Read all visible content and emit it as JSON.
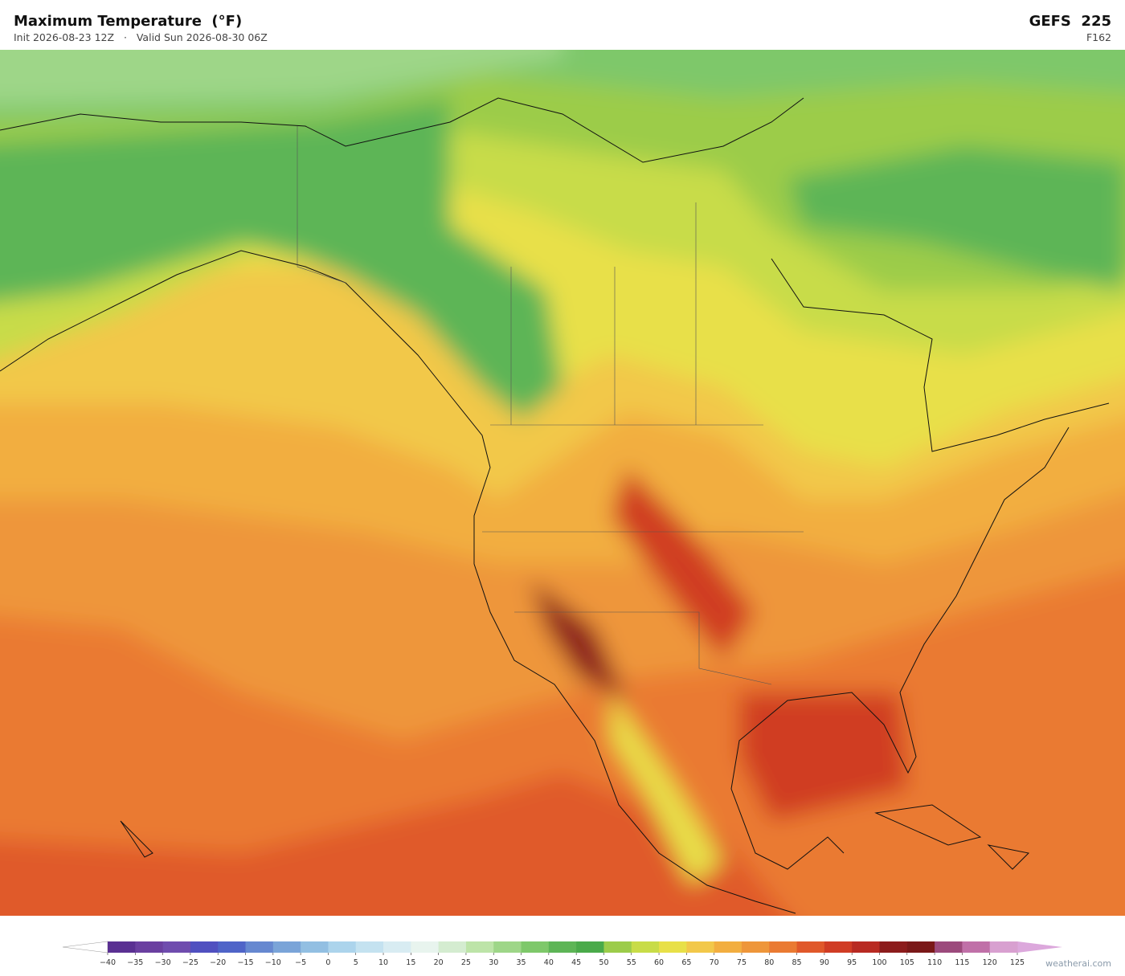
{
  "header": {
    "title": "Maximum Temperature  (°F)",
    "subtitle": "Init 2026-08-23 12Z   ·   Valid Sun 2026-08-30 06Z",
    "model": "GEFS  225",
    "forecast_hour": "F162"
  },
  "colorbar": {
    "ticks": [
      {
        "value": -40,
        "label": "−40"
      },
      {
        "value": -35,
        "label": "−35"
      },
      {
        "value": -30,
        "label": "−30"
      },
      {
        "value": -25,
        "label": "−25"
      },
      {
        "value": -20,
        "label": "−20"
      },
      {
        "value": -15,
        "label": "−15"
      },
      {
        "value": -10,
        "label": "−10"
      },
      {
        "value": -5,
        "label": "−5"
      },
      0,
      5,
      10,
      15,
      20,
      25,
      30,
      35,
      40,
      45,
      50,
      55,
      60,
      65,
      70,
      75,
      80,
      85,
      90,
      95,
      100,
      105,
      110,
      115,
      120,
      125
    ],
    "colors": [
      "#5a3092",
      "#6a3fa0",
      "#6f4cae",
      "#5050c0",
      "#4f64c8",
      "#6688d0",
      "#7aa4d8",
      "#92bfe2",
      "#acd4ec",
      "#c4e2f0",
      "#d8ecf2",
      "#e8f4ee",
      "#d4ecd0",
      "#bde4a8",
      "#9ed688",
      "#7ec86a",
      "#5db556",
      "#4aaa4a",
      "#9ccc4a",
      "#c8dc48",
      "#e8e048",
      "#f2c84a",
      "#f2ae40",
      "#ee963a",
      "#ea7a32",
      "#e0582a",
      "#d03c24",
      "#b82a22",
      "#8c1c1c",
      "#7a1818",
      "#9c4a7c",
      "#c070a8",
      "#d8a0d0"
    ],
    "under_color": "#ffffff",
    "over_color": "#dca8dc"
  },
  "credit": "weatherai.com"
}
